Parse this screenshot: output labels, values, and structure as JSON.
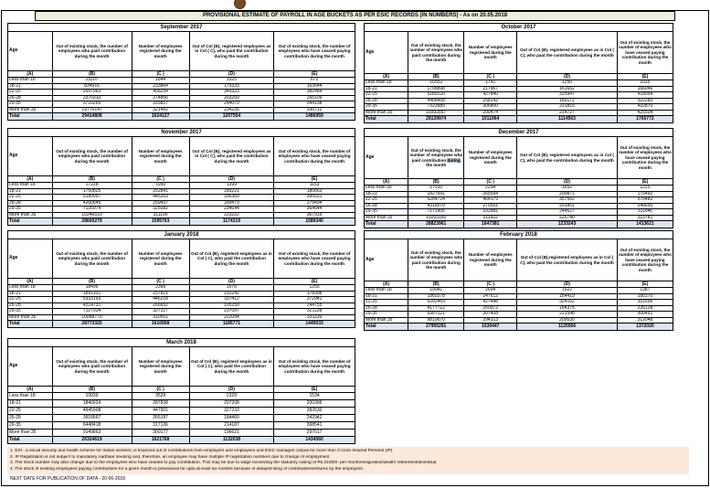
{
  "page": {
    "title": "PROVISIONAL ESTIMATE OF PAYROLL IN AGE BUCKETS AS PER ESIC RECORDS (IN NUMBERS) - As on 20.05.2018",
    "next_date_line": "NEXT DATE FOR PUBLICATION OF DATA - 20-06-2018"
  },
  "colors": {
    "title_bg": "#ebf1dd",
    "total_row_bg": "#dbe5f1",
    "footnote_bg": "#fde9d9",
    "selection_highlight": "#a3b8cc",
    "border": "#000000"
  },
  "footnotes": [
    "1. ESI , a social security and health scheme for Indian workers, is financed out of contributions from employers and employees and ESIC manages corpus for more than 3 crore Insured Persons (IP).",
    "2. IP Registration is not subject to mandatory Aadhaar seeding and, therefore, an employee may have multiple IP registration numbers due to change of employment",
    "3. The stock number may also change due to the employees who have ceased to pay contribution. This may  be due to wage exceeding the statutory ceiling of  Rs.21000/- per month/resignation/death/ retirement/dismissal.",
    "4. The stock of existing employees paying contributions for a given month is provisional for upto at least six months because of delayed filing of contributions/returns by the employers."
  ],
  "tables": [
    {
      "month": "September 2017",
      "headers": [
        "Age",
        "Out of existing stock, the number of employees who paid contribution during the month",
        "Number of employees registered during the month",
        "Out of Col (B), registered employees as in Col ( C), who paid the contribution during the month",
        "Out of existing stock, the number of  employees  who have ceased paying contribution during the month"
      ],
      "letters": [
        "(A)",
        "(B)",
        "(C )",
        "(D)",
        "(E)"
      ],
      "rows": [
        [
          "Less than 18",
          "25207",
          "1844",
          "1325",
          "872"
        ],
        [
          "18-21",
          "834916",
          "233864",
          "175333",
          "163644"
        ],
        [
          "22-25",
          "2697963",
          "458254",
          "349323",
          "382484"
        ],
        [
          "26-28",
          "2370310",
          "274856",
          "203259",
          "265109"
        ],
        [
          "29-35",
          "3710265",
          "333817",
          "244079",
          "344138"
        ],
        [
          "More than 35",
          "19776147",
          "321492",
          "234235",
          "330712"
        ]
      ],
      "total": [
        "Total",
        "29414808",
        "1624127",
        "1207554",
        "1486959"
      ]
    },
    {
      "month": "October 2017",
      "headers": [
        "Age",
        "Out of existing stock, the number of employees who paid contribution during the month",
        "Number of employees registered during the month",
        "Out of Col (B),  registered employees as in Col ( C), who paid the contribution during the month",
        "Out of existing stock, the number of employees  who have ceased paying contribution during the month"
      ],
      "letters": [
        "(A)",
        "(B)",
        "(C )",
        "(D)",
        "(E)"
      ],
      "rows": [
        [
          "Less than 18",
          "16552",
          "1741",
          "1250",
          "1015"
        ],
        [
          "18-21",
          "1708898",
          "217967",
          "161652",
          "166046"
        ],
        [
          "22-25",
          "5289220",
          "427840",
          "325947",
          "418054"
        ],
        [
          "26-28",
          "4408458",
          "258142",
          "189172",
          "322283"
        ],
        [
          "29-35",
          "7323989",
          "306800",
          "221815",
          "432870"
        ],
        [
          "More than 35",
          "10392857",
          "299474",
          "214727",
          "425504"
        ]
      ],
      "total": [
        "Total",
        "29139974",
        "1511964",
        "1114563",
        "1765772"
      ]
    },
    {
      "month": "November 2017",
      "headers": [
        "Age",
        "Out of existing stock, the number of employees who paid contribution during the month",
        "Number of employees registered during the month",
        "Out of Col (B), registered employees as in Col ( C), who paid the contribution during the month",
        "Out of existing stock, the number of  employees  who have ceased paying contribution during the month"
      ],
      "letters": [
        "(A)",
        "(B)",
        "(C )",
        "(D)",
        "(E)"
      ],
      "rows": [
        [
          "Less than 18",
          "17228",
          "1950",
          "1399",
          "1153"
        ],
        [
          "18-21",
          "1750825",
          "252841",
          "189221",
          "180663"
        ],
        [
          "22-25",
          "5189997",
          "445263",
          "336360",
          "395531"
        ],
        [
          "26-28",
          "4260645",
          "259437",
          "189473",
          "279434"
        ],
        [
          "29-35",
          "7135074",
          "325082",
          "234644",
          "364644"
        ],
        [
          "More than 35",
          "10246510",
          "311190",
          "223222",
          "367915"
        ]
      ],
      "total": [
        "Total",
        "28600279",
        "1595763",
        "1174319",
        "1589340"
      ]
    },
    {
      "month": "December 2017",
      "headers": [
        "Age",
        "Out of existing stock, the number of employees who paid contribution during the month",
        "Number of employees registered during the month",
        "Out of Col (B), registered employees as in Col ( C), who paid the contribution during the month",
        "Out of existing stock, the number of employees  who have ceased paying contribution during the month"
      ],
      "b_header_highlight": "during",
      "letters": [
        "(A)",
        "(B)",
        "(C )",
        "(D)",
        "(E)"
      ],
      "rows": [
        [
          "Less than 18",
          "17910",
          "2294",
          "1652",
          "1225"
        ],
        [
          "18-21",
          "1827691",
          "265554",
          "200871",
          "175492"
        ],
        [
          "22-25",
          "5284724",
          "464179",
          "357502",
          "370482"
        ],
        [
          "26-28",
          "4318570",
          "270551",
          "201851",
          "240695"
        ],
        [
          "29-35",
          "7171906",
          "332881",
          "244627",
          "311946"
        ],
        [
          "More than 35",
          "10203160",
          "311922",
          "226740",
          "313781"
        ]
      ],
      "total": [
        "Total",
        "28823961",
        "1647381",
        "1233243",
        "1413621"
      ]
    },
    {
      "month": "January 2018",
      "headers": [
        "Age",
        "Out of existing stock, the number of employees who paid contribution during the month",
        "Number of employees registered during the month",
        "Out of Col (B), registerd employees as in Col ( C), who paid the contribution during the month",
        "Out of existing stock, the number of  employees  who have ceased paying contribution during the month"
      ],
      "letters": [
        "(A)",
        "(B)",
        "(C )",
        "(D)",
        "(E)"
      ],
      "rows": [
        [
          "Less than 18",
          "18496",
          "2399",
          "1676",
          "1255"
        ],
        [
          "18-21",
          "1891101",
          "257821",
          "192242",
          "178308"
        ],
        [
          "22-25",
          "5333193",
          "446218",
          "337412",
          "372941"
        ],
        [
          "26-28",
          "4314731",
          "266652",
          "195250",
          "244755"
        ],
        [
          "29-35",
          "7127034",
          "327317",
          "237097",
          "321138"
        ],
        [
          "More than 35",
          "10088770",
          "310551",
          "222094",
          "331136"
        ]
      ],
      "total": [
        "Total",
        "28773325",
        "1610958",
        "1185771",
        "1449533"
      ]
    },
    {
      "month": "February 2018",
      "headers": [
        "Age",
        "Out of existing stock, the number of employees who paid contribution during the month",
        "Number of employees registered during the month",
        "Out of Col (B),registered employees as in Col ( C), who paid the contribution during the month",
        "Out of existing stock, the number of employees  who have ceased paying contribution during the month"
      ],
      "letters": [
        "(A)",
        "(B)",
        "(C )",
        "(D)",
        "(E)"
      ],
      "rows": [
        [
          "Less than 18",
          "19041",
          "2694",
          "1922",
          "1387"
        ],
        [
          "18-21",
          "1869378",
          "247612",
          "184419",
          "180370"
        ],
        [
          "22-25",
          "5202469",
          "427448",
          "324162",
          "351596"
        ],
        [
          "26-28",
          "4177712",
          "250972",
          "184375",
          "226128"
        ],
        [
          "29-35",
          "6907021",
          "307408",
          "221548",
          "300491"
        ],
        [
          "More than 35",
          "9819670",
          "294313",
          "209530",
          "312048"
        ]
      ],
      "total": [
        "Total",
        "27995291",
        "1530447",
        "1125956",
        "1372020"
      ]
    },
    {
      "month": "March 2018",
      "headers": [
        "Age",
        "Out of existing stock, the number of employees who paid contribution during the month",
        "Number of employees registered during the month",
        "Out of Col (B), registerd employees as in Col ( C), who paid the contribution during the month",
        "Out of existing stock, the number of  employees  who have ceased paying contribution during the month"
      ],
      "letters": [
        "(A)",
        "(B)",
        "(C )",
        "(D)",
        "(E)"
      ],
      "rows": [
        [
          "Less than 18",
          "19939",
          "3529",
          "2329",
          "1534"
        ],
        [
          "18-21",
          "1840924",
          "287838",
          "207208",
          "200396"
        ],
        [
          "22-25",
          "4945908",
          "447901",
          "327233",
          "383530"
        ],
        [
          "26-28",
          "3919567",
          "265187",
          "184460",
          "242942"
        ],
        [
          "29-35",
          "6448418",
          "317136",
          "214187",
          "308541"
        ],
        [
          "More than 35",
          "9149863",
          "300177",
          "196621",
          "297617"
        ]
      ],
      "total": [
        "Total",
        "26324619",
        "1621768",
        "1132038",
        "1434560"
      ]
    }
  ]
}
